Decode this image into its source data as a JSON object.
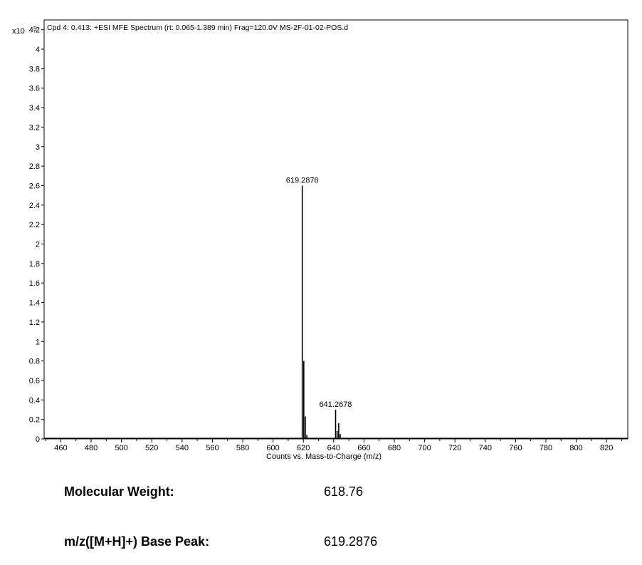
{
  "chart_data": {
    "type": "bar",
    "title": "Cpd 4: 0.413: +ESI MFE Spectrum (rt: 0.065-1.389 min) Frag=120.0V MS-2F-01-02-POS.d",
    "y_multiplier_label": "x10",
    "y_multiplier_exponent": "5",
    "xlabel": "Counts vs. Mass-to-Charge (m/z)",
    "ylabel": "",
    "xlim": [
      449,
      834
    ],
    "ylim": [
      0,
      4.3
    ],
    "x_ticks": [
      460,
      480,
      500,
      520,
      540,
      560,
      580,
      600,
      620,
      640,
      660,
      680,
      700,
      720,
      740,
      760,
      780,
      800,
      820
    ],
    "y_ticks": [
      0,
      0.2,
      0.4,
      0.6,
      0.8,
      1,
      1.2,
      1.4,
      1.6,
      1.8,
      2,
      2.2,
      2.4,
      2.6,
      2.8,
      3,
      3.2,
      3.4,
      3.6,
      3.8,
      4,
      4.2
    ],
    "y_tick_labels": [
      "0",
      "0.2",
      "0.4",
      "0.6",
      "0.8",
      "1",
      "1.2",
      "1.4",
      "1.6",
      "1.8",
      "2",
      "2.2",
      "2.4",
      "2.6",
      "2.8",
      "3",
      "3.2",
      "3.4",
      "3.6",
      "3.8",
      "4",
      "4.2"
    ],
    "peaks": [
      {
        "mz": 619.2876,
        "intensity": 2.6
      },
      {
        "mz": 620.3,
        "intensity": 0.8
      },
      {
        "mz": 621.3,
        "intensity": 0.23
      },
      {
        "mz": 622.3,
        "intensity": 0.04
      },
      {
        "mz": 623.3,
        "intensity": 0.01
      },
      {
        "mz": 641.2678,
        "intensity": 0.3
      },
      {
        "mz": 642.3,
        "intensity": 0.08
      },
      {
        "mz": 643.3,
        "intensity": 0.16
      },
      {
        "mz": 644.3,
        "intensity": 0.05
      }
    ],
    "annotations": [
      {
        "mz": 619.2876,
        "intensity": 2.6,
        "text": "619.2876"
      },
      {
        "mz": 641.2678,
        "intensity": 0.3,
        "text": "641.2678"
      }
    ],
    "grid": false
  },
  "info": [
    {
      "label": "Molecular Weight:",
      "value": "618.76"
    },
    {
      "label": "m/z([M+H]+) Base Peak:",
      "value": "619.2876"
    }
  ]
}
